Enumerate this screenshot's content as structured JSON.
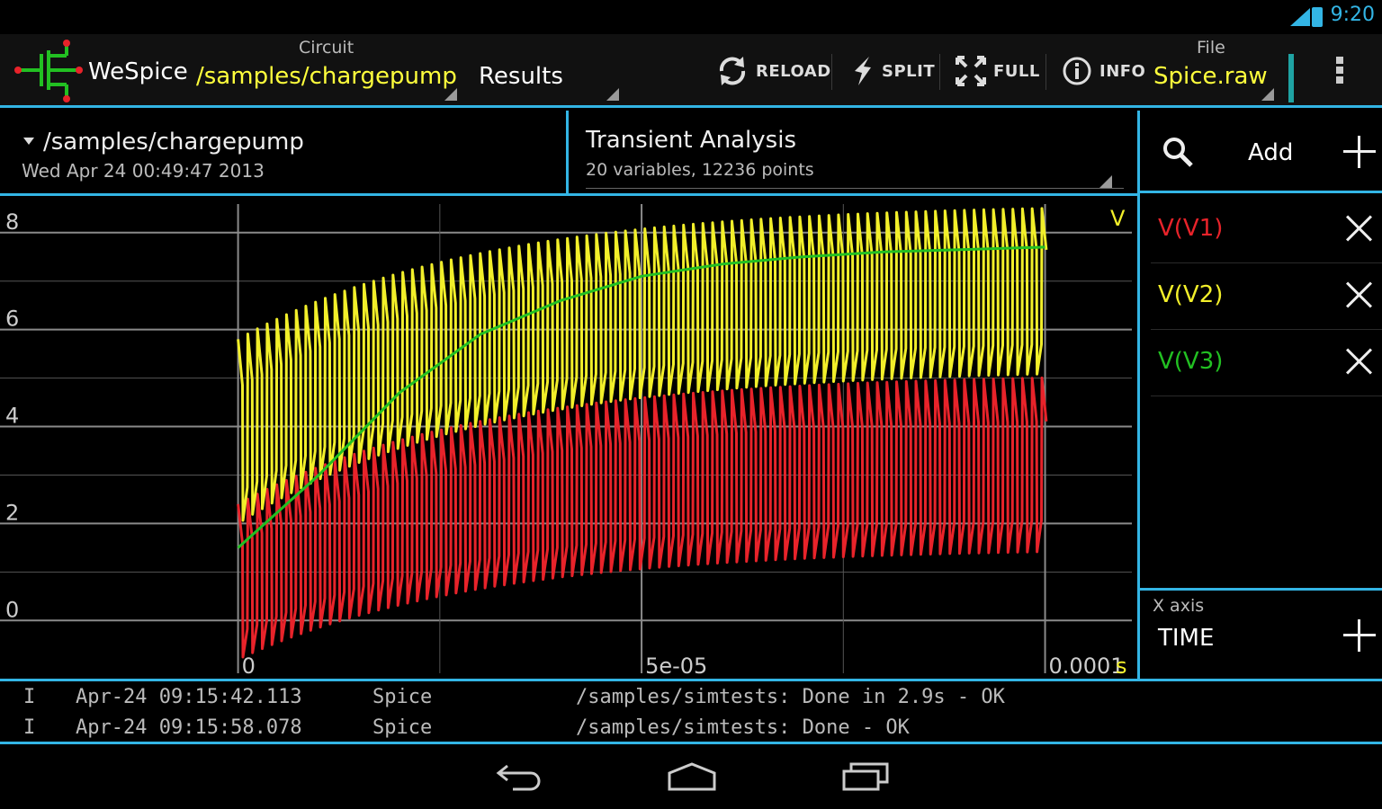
{
  "status_bar": {
    "time": "9:20",
    "signal_label": "3G"
  },
  "action_bar": {
    "app_name": "WeSpice",
    "circuit_caption": "Circuit",
    "circuit_value": "/samples/chargepump",
    "results_label": "Results",
    "reload_label": "RELOAD",
    "split_label": "SPLIT",
    "full_label": "FULL",
    "info_label": "INFO",
    "file_caption": "File",
    "file_value": "Spice.raw"
  },
  "info_row": {
    "circuit_path": "/samples/chargepump",
    "circuit_date": "Wed Apr 24 00:49:47 2013",
    "analysis_title": "Transient Analysis",
    "analysis_sub": "20 variables,  12236 points"
  },
  "right_panel": {
    "add_label": "Add",
    "variables": [
      {
        "label": "V(V1)",
        "color": "#e8232a"
      },
      {
        "label": "V(V2)",
        "color": "#f2ef2a"
      },
      {
        "label": "V(V3)",
        "color": "#22c022"
      }
    ],
    "xaxis_caption": "X axis",
    "xaxis_value": "TIME"
  },
  "chart_data": {
    "type": "line",
    "ylabel": "V",
    "xlabel": "s",
    "yticks": [
      "8",
      "6",
      "4",
      "2",
      "0"
    ],
    "ytick_values": [
      8,
      6,
      4,
      2,
      0
    ],
    "xticks": [
      "0",
      "5e-05",
      "0.0001"
    ],
    "xtick_values": [
      0,
      5e-05,
      0.0001
    ],
    "ylim": [
      -1.2,
      8.7
    ],
    "xlim": [
      -2.95e-05,
      0.0001112
    ],
    "grid": true,
    "series": [
      {
        "name": "V(V1)",
        "color": "#e8232a",
        "kind": "oscillation",
        "period": 1.2e-06,
        "upper_start": 2.4,
        "upper_end": 5.1,
        "lower_start": -0.8,
        "lower_end": 1.5,
        "tau": 3e-05
      },
      {
        "name": "V(V2)",
        "color": "#f2ef2a",
        "kind": "oscillation",
        "period": 1.2e-06,
        "upper_start": 5.8,
        "upper_end": 8.6,
        "lower_start": 2.0,
        "lower_end": 5.2,
        "tau": 3e-05
      },
      {
        "name": "V(V3)",
        "color": "#22c022",
        "kind": "smooth",
        "points": [
          [
            0,
            1.5
          ],
          [
            1e-05,
            3.0
          ],
          [
            2e-05,
            4.7
          ],
          [
            3e-05,
            5.9
          ],
          [
            4e-05,
            6.6
          ],
          [
            5e-05,
            7.1
          ],
          [
            6e-05,
            7.35
          ],
          [
            7e-05,
            7.5
          ],
          [
            8e-05,
            7.6
          ],
          [
            9e-05,
            7.65
          ],
          [
            0.0001,
            7.7
          ]
        ]
      }
    ]
  },
  "log": [
    {
      "level": "I",
      "time": "Apr-24 09:15:42.113",
      "source": "Spice",
      "message": "/samples/simtests: Done in 2.9s - OK"
    },
    {
      "level": "I",
      "time": "Apr-24 09:15:58.078",
      "source": "Spice",
      "message": "/samples/simtests: Done - OK"
    }
  ]
}
